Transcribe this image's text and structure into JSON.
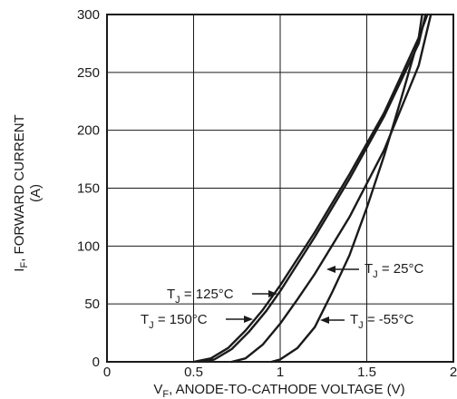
{
  "chart_data": {
    "type": "line",
    "xlabel_main": "V",
    "xlabel_sub": "F",
    "xlabel_rest": ", ANODE-TO-CATHODE VOLTAGE (V)",
    "ylabel_main": "I",
    "ylabel_sub": "F",
    "ylabel_rest": ", FORWARD CURRENT",
    "ylabel_line2": "(A)",
    "xlim": [
      0,
      2
    ],
    "ylim": [
      0,
      300
    ],
    "x_ticks": [
      "0",
      "0.5",
      "1",
      "1.5",
      "2"
    ],
    "y_ticks": [
      "0",
      "50",
      "100",
      "150",
      "200",
      "250",
      "300"
    ],
    "grid": true,
    "series": [
      {
        "name": "TJ = 150°C",
        "color": "#1a1a1a",
        "points": [
          [
            0.5,
            0
          ],
          [
            0.6,
            3
          ],
          [
            0.7,
            12
          ],
          [
            0.8,
            27
          ],
          [
            0.9,
            45
          ],
          [
            1.0,
            66
          ],
          [
            1.2,
            112
          ],
          [
            1.4,
            162
          ],
          [
            1.6,
            215
          ],
          [
            1.8,
            280
          ],
          [
            1.82,
            300
          ]
        ]
      },
      {
        "name": "TJ = 125°C",
        "color": "#1a1a1a",
        "points": [
          [
            0.53,
            0
          ],
          [
            0.62,
            2
          ],
          [
            0.72,
            11
          ],
          [
            0.82,
            26
          ],
          [
            0.92,
            44
          ],
          [
            1.0,
            61
          ],
          [
            1.2,
            108
          ],
          [
            1.4,
            158
          ],
          [
            1.6,
            212
          ],
          [
            1.8,
            275
          ],
          [
            1.84,
            300
          ]
        ]
      },
      {
        "name": "TJ = 25°C",
        "color": "#1a1a1a",
        "points": [
          [
            0.72,
            0
          ],
          [
            0.8,
            3
          ],
          [
            0.9,
            15
          ],
          [
            1.0,
            33
          ],
          [
            1.1,
            54
          ],
          [
            1.2,
            76
          ],
          [
            1.4,
            125
          ],
          [
            1.6,
            183
          ],
          [
            1.8,
            256
          ],
          [
            1.87,
            300
          ]
        ]
      },
      {
        "name": "TJ = -55°C",
        "color": "#1a1a1a",
        "points": [
          [
            0.95,
            0
          ],
          [
            1.0,
            2
          ],
          [
            1.1,
            12
          ],
          [
            1.2,
            30
          ],
          [
            1.3,
            60
          ],
          [
            1.4,
            92
          ],
          [
            1.5,
            133
          ],
          [
            1.6,
            178
          ],
          [
            1.7,
            228
          ],
          [
            1.8,
            280
          ],
          [
            1.85,
            300
          ]
        ]
      }
    ],
    "annotations": [
      {
        "main": "T",
        "sub": "J",
        "rest": " = 125°C"
      },
      {
        "main": "T",
        "sub": "J",
        "rest": " = 150°C"
      },
      {
        "main": "T",
        "sub": "J",
        "rest": " = 25°C"
      },
      {
        "main": "T",
        "sub": "J",
        "rest": " = -55°C"
      }
    ]
  }
}
